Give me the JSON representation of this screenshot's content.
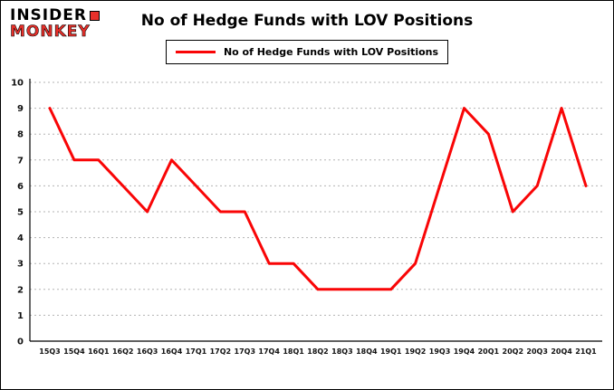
{
  "logo": {
    "line1": "INSIDER",
    "line2": "MONKEY",
    "accent_color": "#e8302a"
  },
  "title": "No of Hedge Funds with LOV Positions",
  "legend": {
    "label": "No of Hedge Funds with LOV Positions",
    "line_color": "#f90506",
    "position": "top-center"
  },
  "chart_data": {
    "type": "line",
    "title": "No of Hedge Funds with LOV Positions",
    "categories": [
      "15Q3",
      "15Q4",
      "16Q1",
      "16Q2",
      "16Q3",
      "16Q4",
      "17Q1",
      "17Q2",
      "17Q3",
      "17Q4",
      "18Q1",
      "18Q2",
      "18Q3",
      "18Q4",
      "19Q1",
      "19Q2",
      "19Q3",
      "19Q4",
      "20Q1",
      "20Q2",
      "20Q3",
      "20Q4",
      "21Q1"
    ],
    "series": [
      {
        "name": "No of Hedge Funds with LOV Positions",
        "color": "#f90506",
        "values": [
          9,
          7,
          7,
          6,
          5,
          7,
          6,
          5,
          5,
          3,
          3,
          2,
          2,
          2,
          2,
          3,
          6,
          9,
          8,
          5,
          6,
          9,
          6
        ]
      }
    ],
    "xlabel": "",
    "ylabel": "",
    "ylim": [
      0,
      10
    ],
    "yticks": [
      0,
      1,
      2,
      3,
      4,
      5,
      6,
      7,
      8,
      9,
      10
    ],
    "grid": true,
    "grid_style": "dotted",
    "background_color": "#ffffff"
  }
}
